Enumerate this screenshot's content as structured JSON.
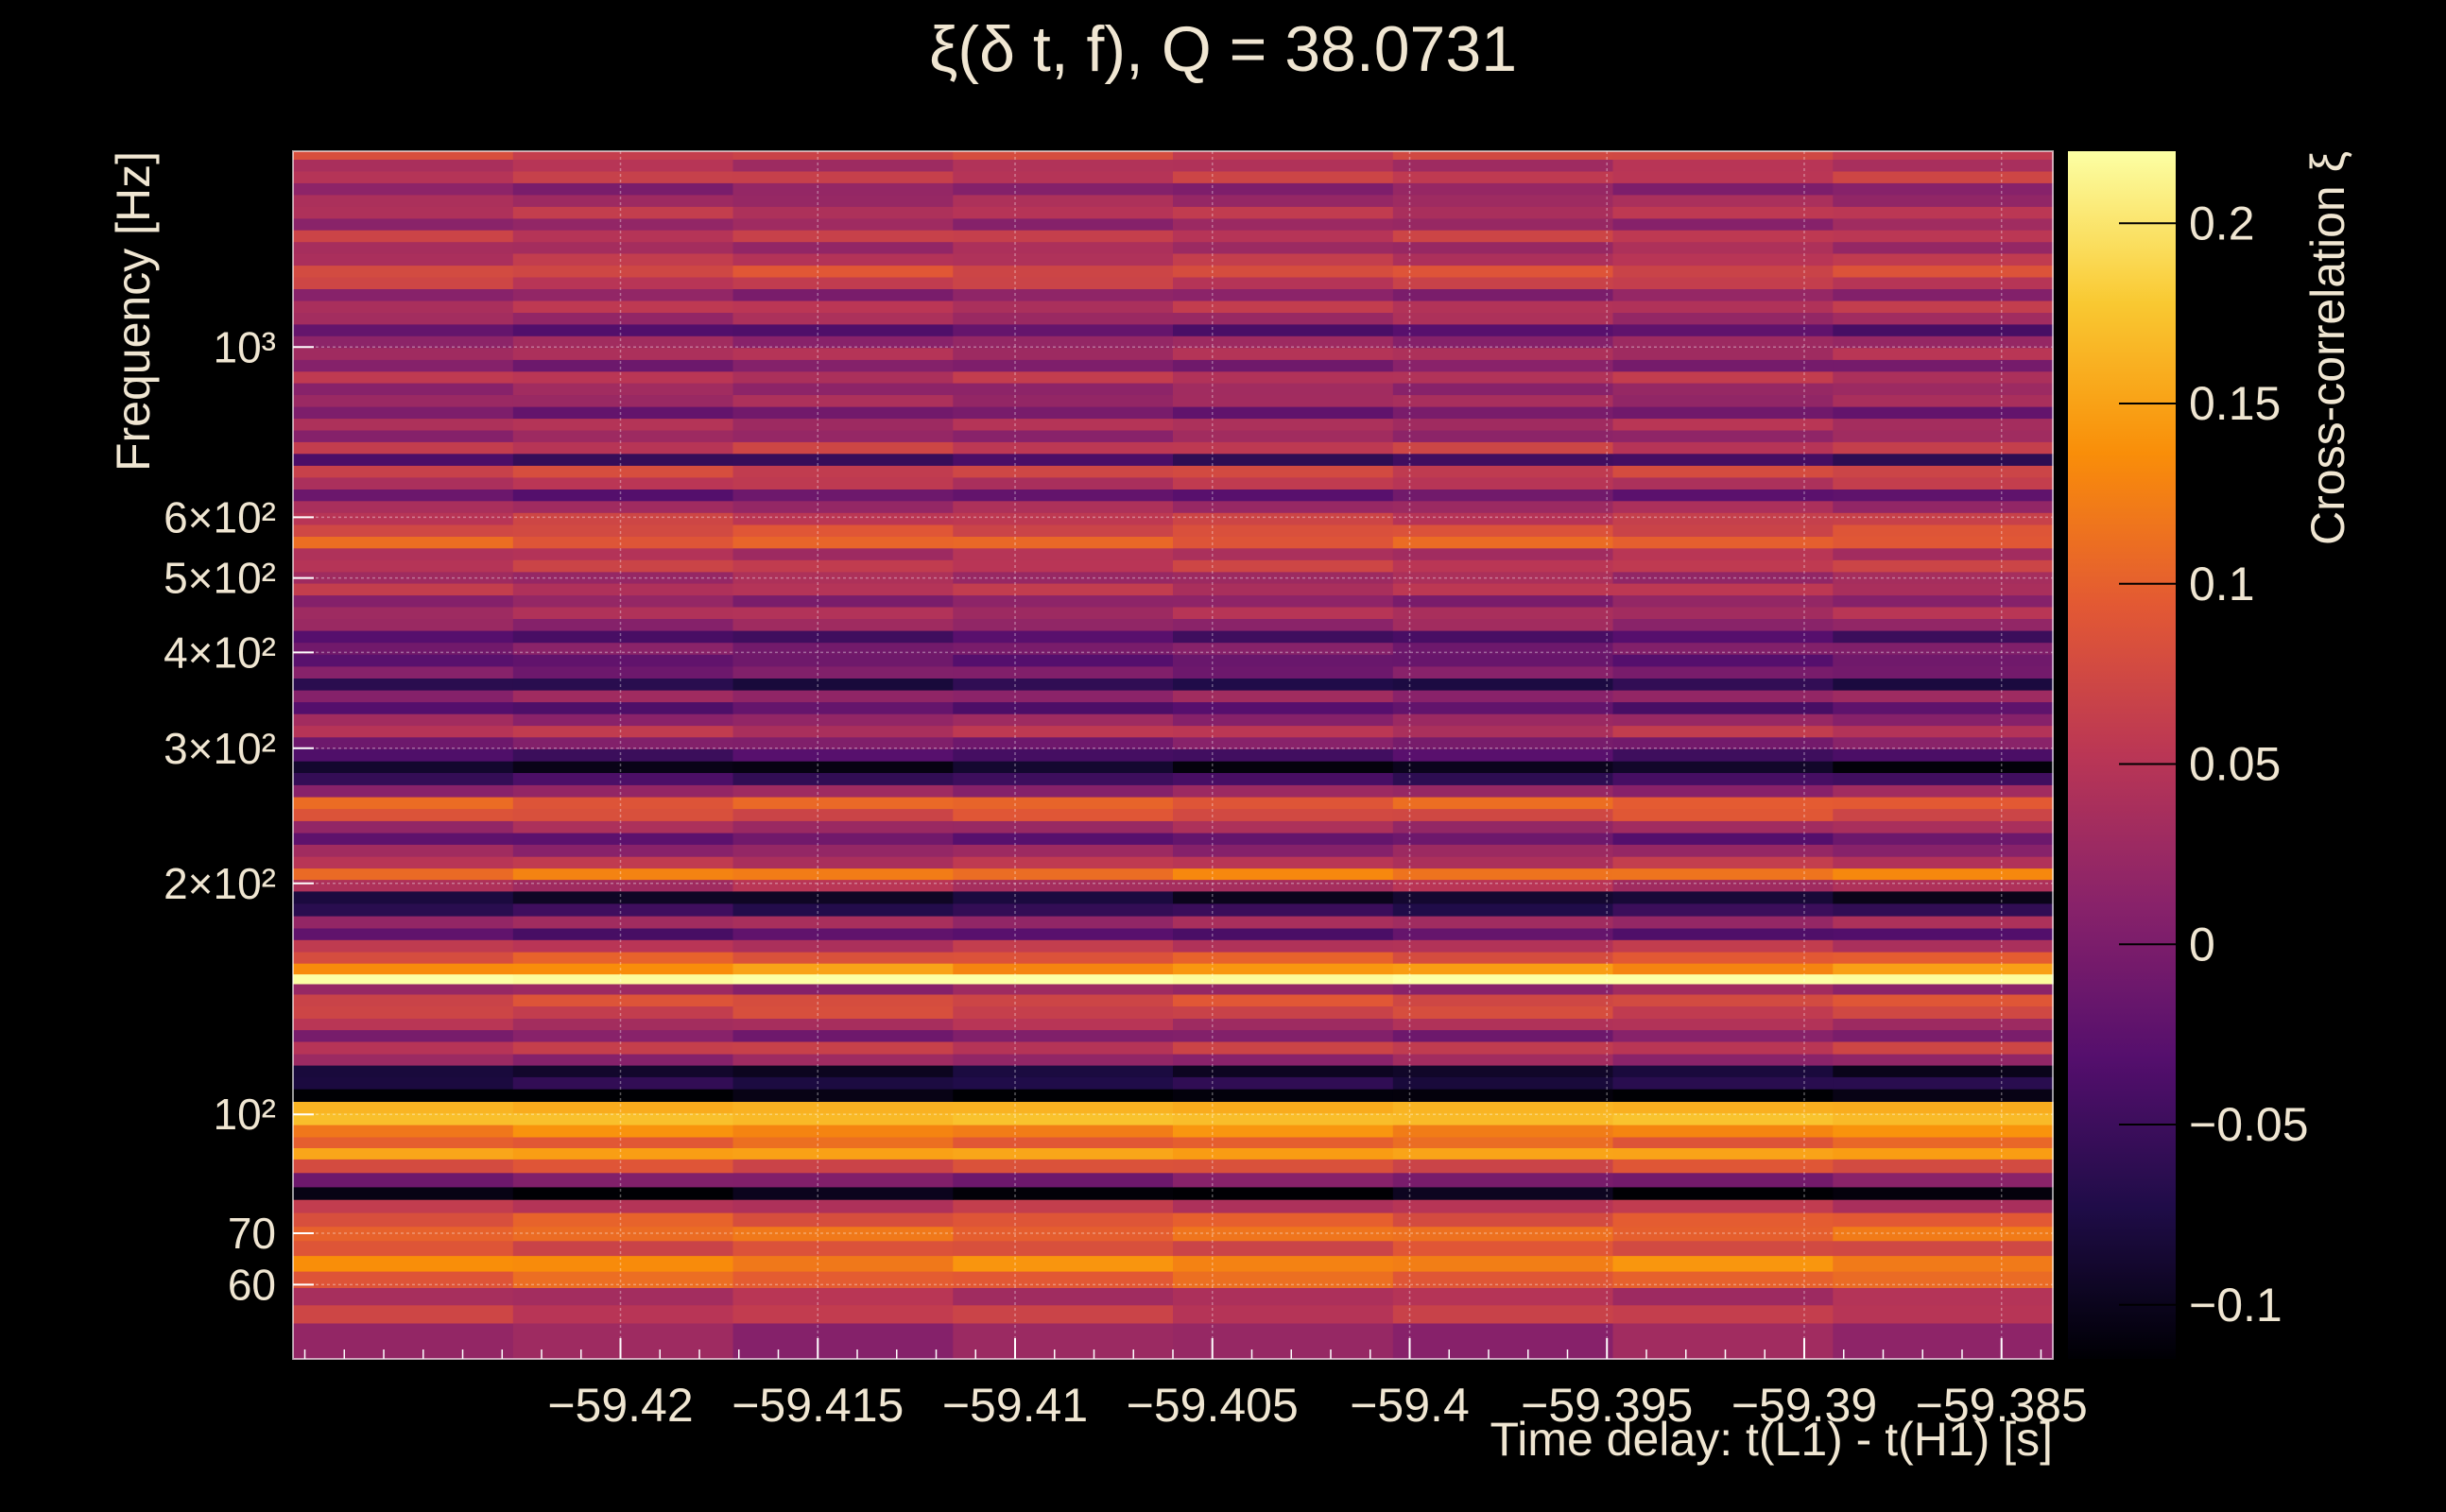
{
  "chart_data": {
    "type": "heatmap",
    "title": "ξ(δ t, f), Q = 38.0731",
    "xlabel": "Time delay: t(L1) - t(H1) [s]",
    "ylabel": "Frequency [Hz]",
    "colorbar_label": "Cross-correlation ξ",
    "x_range": [
      -59.4283,
      -59.3837
    ],
    "y_range": [
      48,
      1800
    ],
    "y_scale": "log",
    "grid": true,
    "x_ticks": [
      {
        "value": -59.42,
        "label": "−59.42"
      },
      {
        "value": -59.415,
        "label": "−59.415"
      },
      {
        "value": -59.41,
        "label": "−59.41"
      },
      {
        "value": -59.405,
        "label": "−59.405"
      },
      {
        "value": -59.4,
        "label": "−59.4"
      },
      {
        "value": -59.395,
        "label": "−59.395"
      },
      {
        "value": -59.39,
        "label": "−59.39"
      },
      {
        "value": -59.385,
        "label": "−59.385"
      }
    ],
    "y_ticks": [
      {
        "value": 60,
        "label": "60"
      },
      {
        "value": 70,
        "label": "70"
      },
      {
        "value": 100,
        "label": "10²"
      },
      {
        "value": 200,
        "label": "2×10²"
      },
      {
        "value": 300,
        "label": "3×10²"
      },
      {
        "value": 400,
        "label": "4×10²"
      },
      {
        "value": 500,
        "label": "5×10²"
      },
      {
        "value": 600,
        "label": "6×10²"
      },
      {
        "value": 1000,
        "label": "10³"
      }
    ],
    "colorbar_range": [
      -0.115,
      0.22
    ],
    "colorbar_ticks": [
      {
        "value": 0.2,
        "label": "0.2"
      },
      {
        "value": 0.15,
        "label": "0.15"
      },
      {
        "value": 0.1,
        "label": "0.1"
      },
      {
        "value": 0.05,
        "label": "0.05"
      },
      {
        "value": 0,
        "label": "0"
      },
      {
        "value": -0.05,
        "label": "−0.05"
      },
      {
        "value": -0.1,
        "label": "−0.1"
      }
    ],
    "colormap": [
      "#000004",
      "#1f0c48",
      "#550f6d",
      "#88226a",
      "#ba3655",
      "#e35933",
      "#f98e09",
      "#f9c932",
      "#fcffa4"
    ],
    "bands": [
      {
        "f": 52,
        "xi": 0.02
      },
      {
        "f": 55,
        "xi": 0.06
      },
      {
        "f": 58,
        "xi": 0.04
      },
      {
        "f": 61,
        "xi": 0.1
      },
      {
        "f": 64,
        "xi": 0.13
      },
      {
        "f": 67,
        "xi": 0.08
      },
      {
        "f": 70,
        "xi": 0.11
      },
      {
        "f": 73,
        "xi": 0.09
      },
      {
        "f": 76,
        "xi": 0.05
      },
      {
        "f": 79,
        "xi": -0.11
      },
      {
        "f": 82,
        "xi": 0.0
      },
      {
        "f": 86,
        "xi": 0.08
      },
      {
        "f": 89,
        "xi": 0.15
      },
      {
        "f": 92,
        "xi": 0.1
      },
      {
        "f": 95,
        "xi": 0.13
      },
      {
        "f": 99,
        "xi": 0.17
      },
      {
        "f": 102,
        "xi": 0.16
      },
      {
        "f": 106,
        "xi": -0.115
      },
      {
        "f": 110,
        "xi": -0.07
      },
      {
        "f": 114,
        "xi": -0.09
      },
      {
        "f": 118,
        "xi": 0.02
      },
      {
        "f": 122,
        "xi": 0.06
      },
      {
        "f": 127,
        "xi": 0.0
      },
      {
        "f": 131,
        "xi": 0.04
      },
      {
        "f": 136,
        "xi": 0.07
      },
      {
        "f": 141,
        "xi": 0.08
      },
      {
        "f": 146,
        "xi": 0.02
      },
      {
        "f": 150,
        "xi": 0.22
      },
      {
        "f": 155,
        "xi": 0.14
      },
      {
        "f": 160,
        "xi": 0.09
      },
      {
        "f": 166,
        "xi": 0.05
      },
      {
        "f": 172,
        "xi": -0.03
      },
      {
        "f": 178,
        "xi": 0.03
      },
      {
        "f": 185,
        "xi": -0.06
      },
      {
        "f": 192,
        "xi": -0.09
      },
      {
        "f": 199,
        "xi": 0.04
      },
      {
        "f": 206,
        "xi": 0.12
      },
      {
        "f": 213,
        "xi": 0.05
      },
      {
        "f": 221,
        "xi": 0.02
      },
      {
        "f": 229,
        "xi": -0.02
      },
      {
        "f": 237,
        "xi": 0.03
      },
      {
        "f": 246,
        "xi": 0.08
      },
      {
        "f": 255,
        "xi": 0.1
      },
      {
        "f": 264,
        "xi": 0.02
      },
      {
        "f": 274,
        "xi": -0.05
      },
      {
        "f": 284,
        "xi": -0.1
      },
      {
        "f": 294,
        "xi": -0.04
      },
      {
        "f": 305,
        "xi": 0.0
      },
      {
        "f": 316,
        "xi": 0.05
      },
      {
        "f": 327,
        "xi": 0.02
      },
      {
        "f": 339,
        "xi": -0.03
      },
      {
        "f": 351,
        "xi": 0.02
      },
      {
        "f": 364,
        "xi": -0.07
      },
      {
        "f": 377,
        "xi": 0.0
      },
      {
        "f": 391,
        "xi": -0.02
      },
      {
        "f": 405,
        "xi": 0.0
      },
      {
        "f": 420,
        "xi": -0.04
      },
      {
        "f": 435,
        "xi": 0.02
      },
      {
        "f": 451,
        "xi": 0.04
      },
      {
        "f": 467,
        "xi": 0.01
      },
      {
        "f": 484,
        "xi": 0.05
      },
      {
        "f": 501,
        "xi": 0.03
      },
      {
        "f": 519,
        "xi": 0.06
      },
      {
        "f": 538,
        "xi": 0.04
      },
      {
        "f": 557,
        "xi": 0.1
      },
      {
        "f": 577,
        "xi": 0.08
      },
      {
        "f": 598,
        "xi": 0.06
      },
      {
        "f": 620,
        "xi": 0.03
      },
      {
        "f": 642,
        "xi": -0.02
      },
      {
        "f": 665,
        "xi": 0.05
      },
      {
        "f": 689,
        "xi": 0.07
      },
      {
        "f": 714,
        "xi": -0.05
      },
      {
        "f": 740,
        "xi": 0.06
      },
      {
        "f": 766,
        "xi": 0.02
      },
      {
        "f": 794,
        "xi": 0.04
      },
      {
        "f": 822,
        "xi": -0.01
      },
      {
        "f": 852,
        "xi": 0.03
      },
      {
        "f": 883,
        "xi": 0.02
      },
      {
        "f": 914,
        "xi": 0.05
      },
      {
        "f": 947,
        "xi": 0.0
      },
      {
        "f": 981,
        "xi": 0.04
      },
      {
        "f": 1017,
        "xi": 0.02
      },
      {
        "f": 1053,
        "xi": -0.03
      },
      {
        "f": 1091,
        "xi": 0.03
      },
      {
        "f": 1130,
        "xi": 0.05
      },
      {
        "f": 1171,
        "xi": 0.01
      },
      {
        "f": 1213,
        "xi": 0.06
      },
      {
        "f": 1257,
        "xi": 0.08
      },
      {
        "f": 1302,
        "xi": 0.05
      },
      {
        "f": 1349,
        "xi": 0.03
      },
      {
        "f": 1397,
        "xi": 0.06
      },
      {
        "f": 1447,
        "xi": 0.02
      },
      {
        "f": 1499,
        "xi": 0.05
      },
      {
        "f": 1553,
        "xi": 0.03
      },
      {
        "f": 1609,
        "xi": 0.01
      },
      {
        "f": 1667,
        "xi": 0.06
      },
      {
        "f": 1727,
        "xi": 0.04
      },
      {
        "f": 1789,
        "xi": 0.07
      }
    ]
  }
}
